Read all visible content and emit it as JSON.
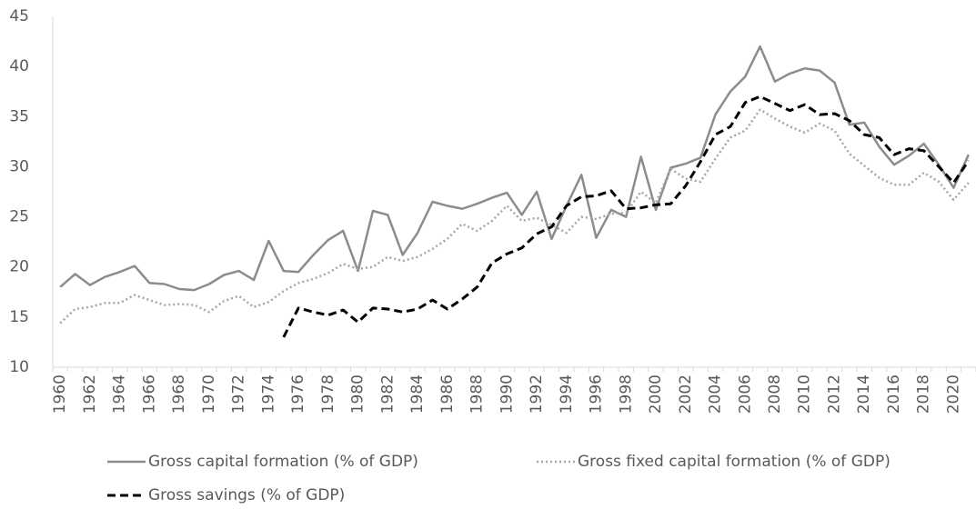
{
  "chart_data": {
    "type": "line",
    "categories": [
      "1960",
      null,
      "1962",
      null,
      "1964",
      null,
      "1966",
      null,
      "1968",
      null,
      "1970",
      null,
      "1972",
      null,
      "1974",
      null,
      "1976",
      null,
      "1978",
      null,
      "1980",
      null,
      "1982",
      null,
      "1984",
      null,
      "1986",
      null,
      "1988",
      null,
      "1990",
      null,
      "1992",
      null,
      "1994",
      null,
      "1996",
      null,
      "1998",
      null,
      "2000",
      null,
      "2002",
      null,
      "2004",
      null,
      "2006",
      null,
      "2008",
      null,
      "2010",
      null,
      "2012",
      null,
      "2014",
      null,
      "2016",
      null,
      "2018",
      null,
      "2020",
      null
    ],
    "series": [
      {
        "name": "Gross capital formation (% of GDP)",
        "color": "#8c8c8c",
        "style": "solid",
        "values": [
          18.0,
          19.3,
          18.2,
          19.0,
          19.5,
          20.1,
          18.4,
          18.3,
          17.8,
          17.7,
          18.3,
          19.2,
          19.6,
          18.7,
          22.6,
          19.6,
          19.5,
          21.2,
          22.7,
          23.6,
          19.6,
          25.6,
          25.2,
          21.2,
          23.4,
          26.5,
          26.1,
          25.8,
          26.3,
          26.9,
          27.4,
          25.2,
          27.5,
          22.8,
          26.1,
          29.2,
          22.9,
          25.7,
          25.0,
          31.0,
          25.7,
          29.9,
          30.3,
          30.9,
          35.2,
          37.5,
          39.0,
          42.0,
          38.5,
          39.3,
          39.8,
          39.6,
          38.4,
          34.2,
          34.4,
          32.0,
          30.2,
          31.1,
          32.3,
          30.2,
          27.9,
          31.2
        ]
      },
      {
        "name": "Gross fixed capital formation (% of GDP)",
        "color": "#a6a6a6",
        "style": "dotted",
        "values": [
          14.4,
          15.8,
          16.0,
          16.4,
          16.4,
          17.2,
          16.7,
          16.2,
          16.3,
          16.2,
          15.5,
          16.6,
          17.1,
          16.0,
          16.5,
          17.6,
          18.4,
          18.8,
          19.4,
          20.3,
          19.8,
          20.0,
          21.0,
          20.6,
          21.0,
          21.8,
          22.8,
          24.3,
          23.6,
          24.6,
          26.1,
          24.6,
          24.9,
          24.2,
          23.4,
          25.0,
          24.8,
          25.3,
          25.4,
          27.5,
          26.4,
          29.8,
          28.8,
          28.5,
          30.8,
          32.9,
          33.6,
          35.7,
          34.8,
          34.0,
          33.4,
          34.3,
          33.6,
          31.3,
          30.1,
          28.9,
          28.2,
          28.2,
          29.4,
          28.5,
          26.7,
          28.4
        ]
      },
      {
        "name": "Gross savings (% of GDP)",
        "color": "#000000",
        "style": "dashed",
        "values": [
          null,
          null,
          null,
          null,
          null,
          null,
          null,
          null,
          null,
          null,
          null,
          null,
          null,
          null,
          null,
          13.0,
          15.9,
          15.5,
          15.2,
          15.7,
          14.5,
          15.9,
          15.8,
          15.5,
          15.8,
          16.7,
          15.8,
          16.8,
          18.0,
          20.4,
          21.3,
          21.9,
          23.3,
          24.0,
          26.1,
          27.0,
          27.1,
          27.6,
          25.8,
          25.9,
          26.2,
          26.3,
          28.1,
          30.5,
          33.2,
          34.0,
          36.4,
          37.0,
          36.3,
          35.6,
          36.2,
          35.2,
          35.3,
          34.6,
          33.2,
          32.9,
          31.2,
          31.8,
          31.6,
          30.0,
          28.4,
          30.6
        ]
      }
    ],
    "ylim": [
      10,
      45
    ],
    "yticks": [
      10,
      15,
      20,
      25,
      30,
      35,
      40,
      45
    ],
    "grid": false
  }
}
